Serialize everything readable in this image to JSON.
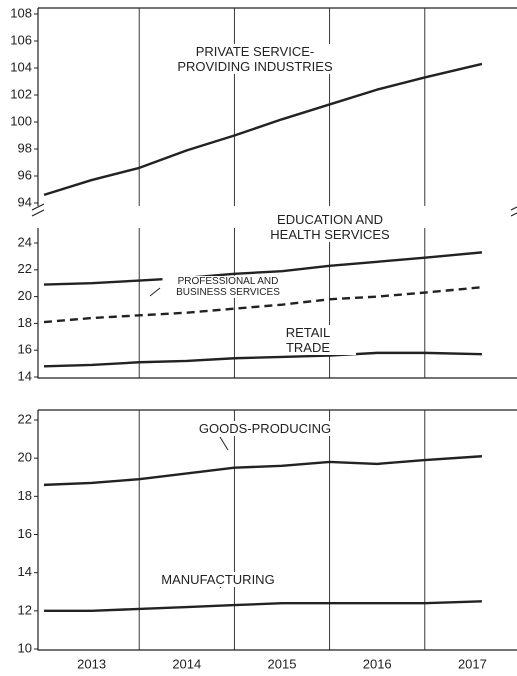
{
  "chart_data": [
    {
      "type": "line",
      "xlim": [
        2013,
        2018
      ],
      "ylim": [
        94,
        108
      ],
      "yticks": [
        94,
        96,
        98,
        100,
        102,
        104,
        106,
        108
      ],
      "xgrid": [
        2014,
        2015,
        2016,
        2017
      ],
      "x": [
        2013.0,
        2013.5,
        2014.0,
        2014.5,
        2015.0,
        2015.5,
        2016.0,
        2016.5,
        2017.0,
        2017.6
      ],
      "series": [
        {
          "name": "PRIVATE SERVICE-PROVIDING INDUSTRIES",
          "color": "#222222",
          "dash": false,
          "values": [
            94.6,
            95.7,
            96.6,
            97.9,
            99.0,
            100.2,
            101.3,
            102.4,
            103.3,
            104.3
          ]
        }
      ]
    },
    {
      "type": "line",
      "xlim": [
        2013,
        2018
      ],
      "ylim": [
        14,
        24
      ],
      "yticks": [
        14,
        16,
        18,
        20,
        22,
        24
      ],
      "xgrid": [
        2014,
        2015,
        2016,
        2017
      ],
      "x": [
        2013.0,
        2013.5,
        2014.0,
        2014.5,
        2015.0,
        2015.5,
        2016.0,
        2016.5,
        2017.0,
        2017.6
      ],
      "series": [
        {
          "name": "EDUCATION AND HEALTH SERVICES",
          "color": "#222222",
          "dash": false,
          "values": [
            20.9,
            21.0,
            21.2,
            21.4,
            21.7,
            21.9,
            22.3,
            22.6,
            22.9,
            23.3
          ]
        },
        {
          "name": "PROFESSIONAL AND BUSINESS SERVICES",
          "color": "#222222",
          "dash": true,
          "values": [
            18.1,
            18.4,
            18.6,
            18.8,
            19.1,
            19.4,
            19.8,
            20.0,
            20.3,
            20.7
          ]
        },
        {
          "name": "RETAIL TRADE",
          "color": "#222222",
          "dash": false,
          "values": [
            14.8,
            14.9,
            15.1,
            15.2,
            15.4,
            15.5,
            15.6,
            15.8,
            15.8,
            15.7
          ]
        }
      ]
    },
    {
      "type": "line",
      "xlim": [
        2013,
        2018
      ],
      "ylim": [
        10,
        22
      ],
      "yticks": [
        10,
        12,
        14,
        16,
        18,
        20,
        22
      ],
      "xgrid": [
        2014,
        2015,
        2016,
        2017
      ],
      "xticks": [
        {
          "value": 2013.5,
          "label": "2013"
        },
        {
          "value": 2014.5,
          "label": "2014"
        },
        {
          "value": 2015.5,
          "label": "2015"
        },
        {
          "value": 2016.5,
          "label": "2016"
        },
        {
          "value": 2017.5,
          "label": "2017"
        }
      ],
      "x": [
        2013.0,
        2013.5,
        2014.0,
        2014.5,
        2015.0,
        2015.5,
        2016.0,
        2016.5,
        2017.0,
        2017.6
      ],
      "series": [
        {
          "name": "GOODS-PRODUCING",
          "color": "#222222",
          "dash": false,
          "values": [
            18.6,
            18.7,
            18.9,
            19.2,
            19.5,
            19.6,
            19.8,
            19.7,
            19.9,
            20.1
          ]
        },
        {
          "name": "MANUFACTURING",
          "color": "#222222",
          "dash": false,
          "values": [
            12.0,
            12.0,
            12.1,
            12.2,
            12.3,
            12.4,
            12.4,
            12.4,
            12.4,
            12.5
          ]
        }
      ]
    }
  ]
}
